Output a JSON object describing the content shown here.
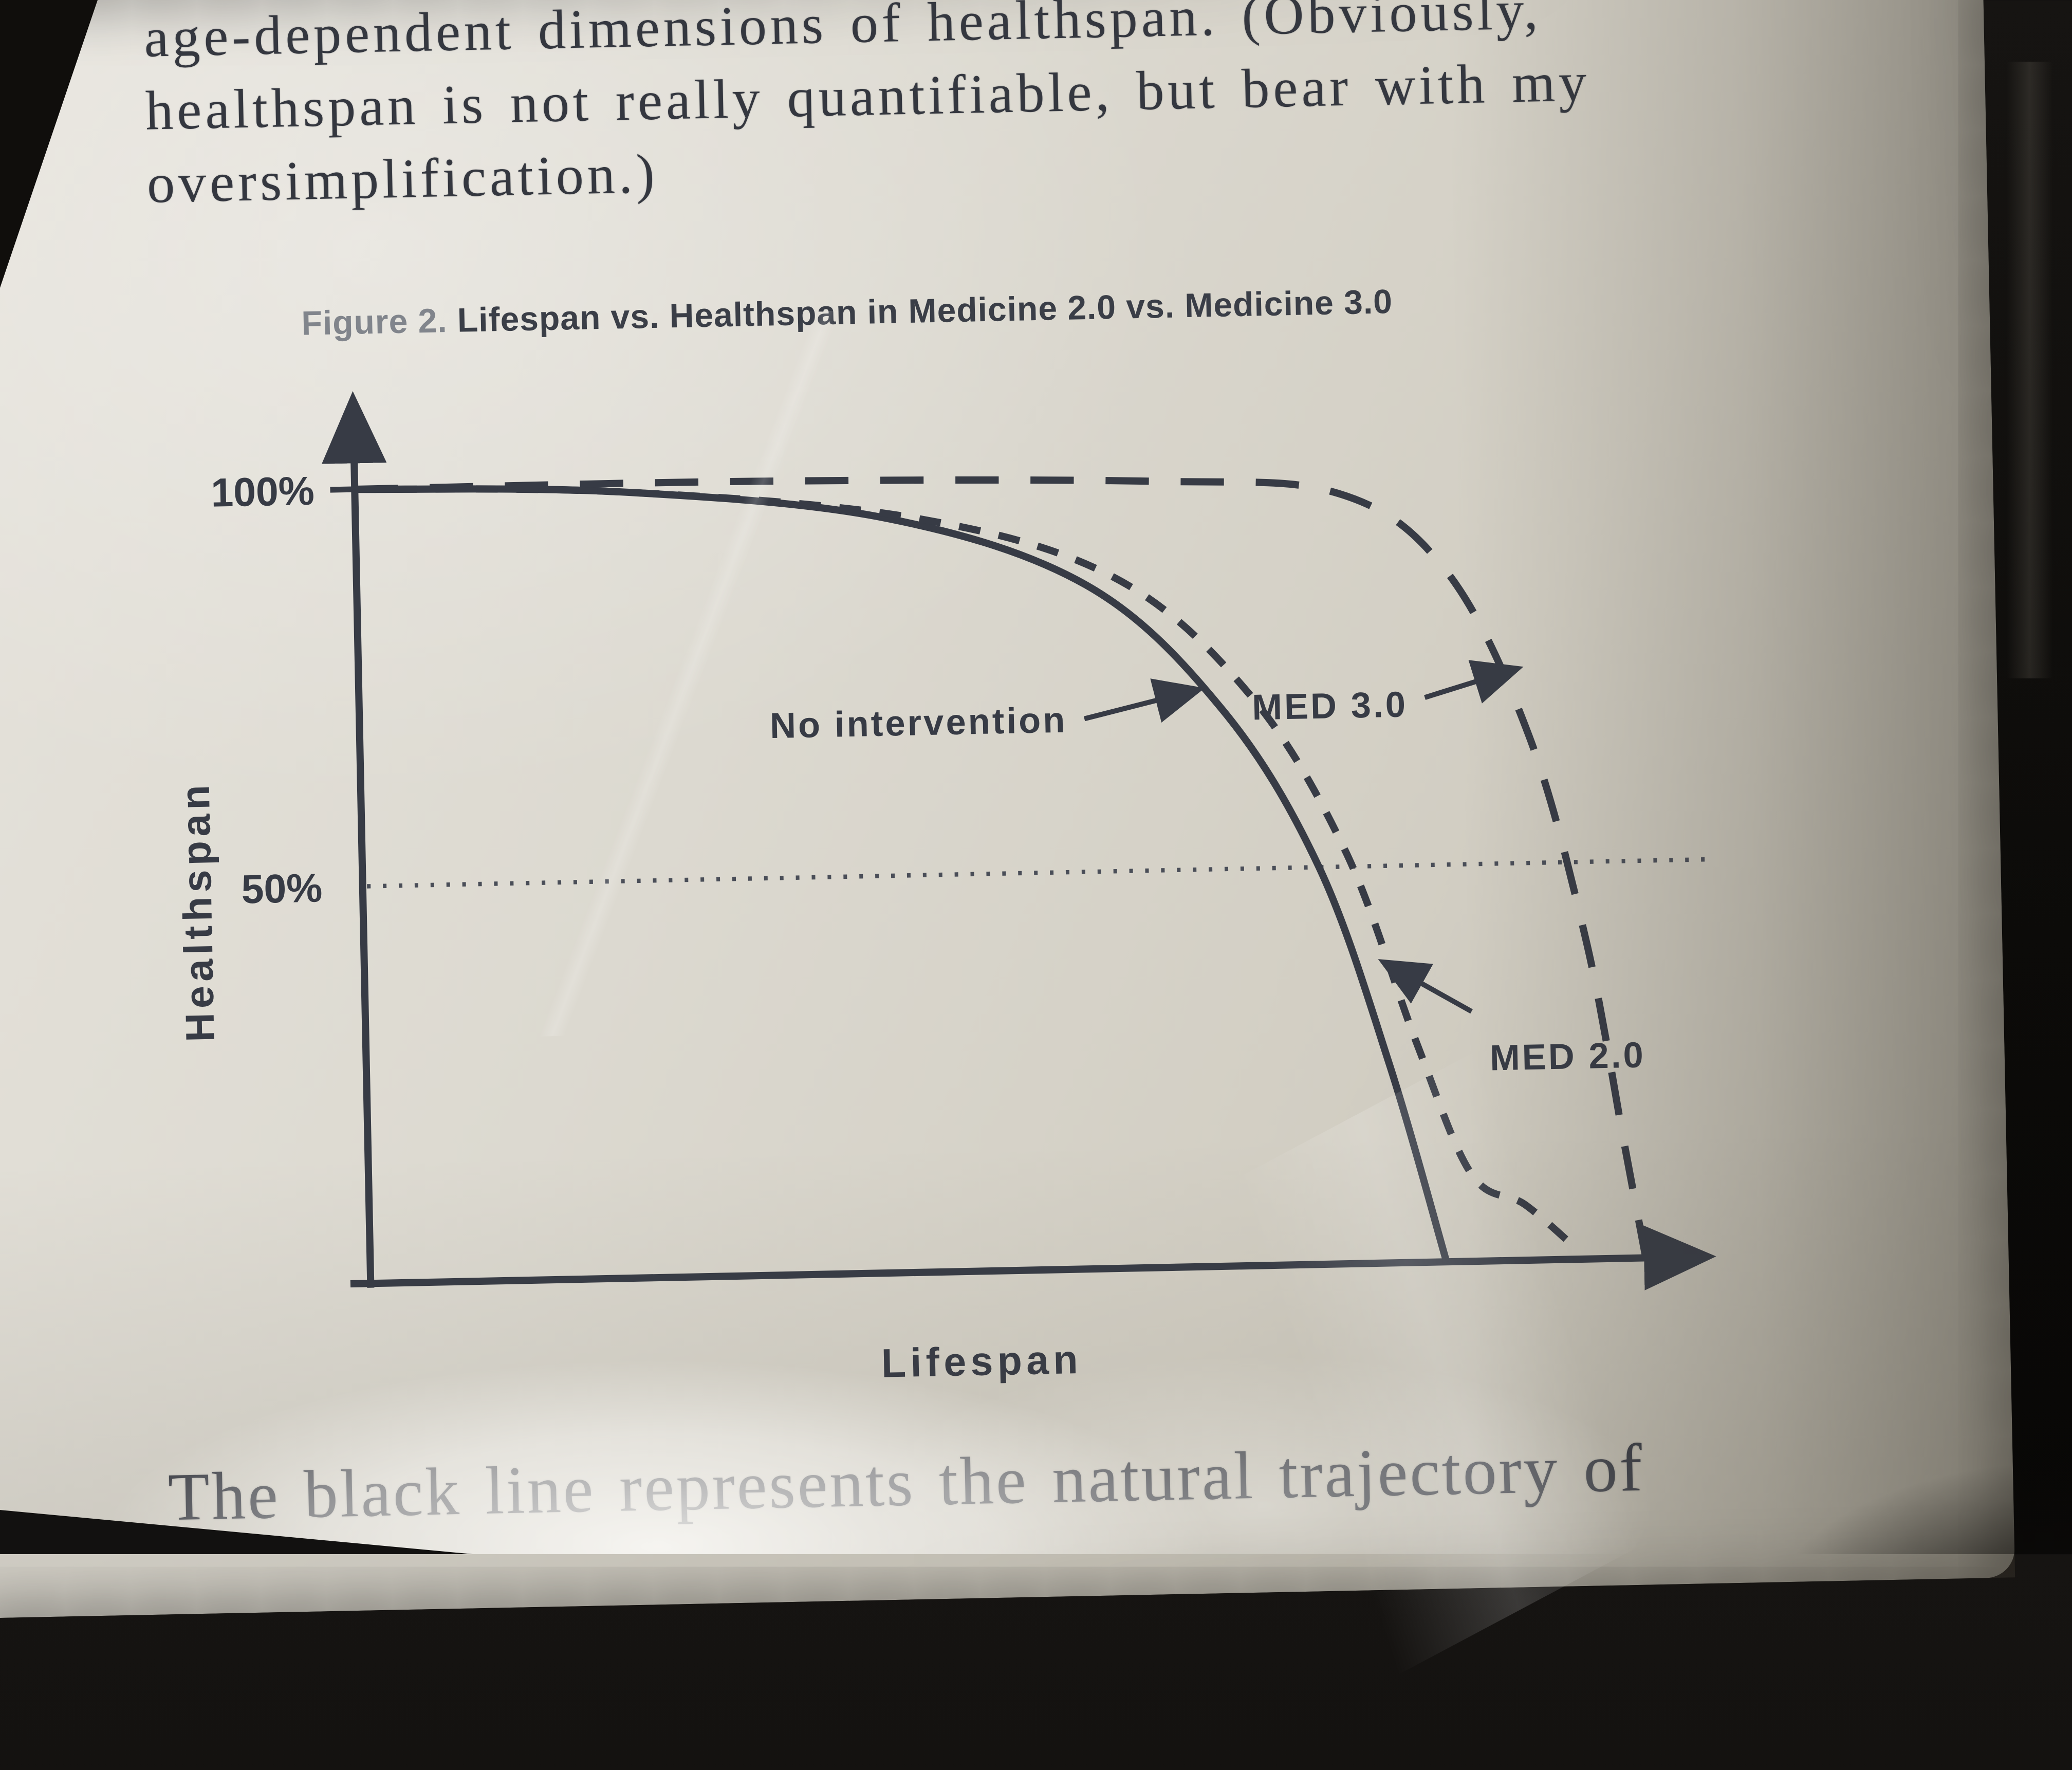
{
  "page": {
    "top_paragraph": {
      "line1": "age-dependent dimensions of healthspan. (Obviously,",
      "line2": "healthspan is not really quantifiable, but bear with my",
      "line3": "oversimplification.)"
    },
    "bottom_paragraph": "The black line represents the natural trajectory of"
  },
  "figure": {
    "label": "Figure 2.",
    "title": "Lifespan vs. Healthspan in Medicine 2.0 vs. Medicine 3.0"
  },
  "chart_data": {
    "type": "line",
    "title": "Figure 2. Lifespan vs. Healthspan in Medicine 2.0 vs. Medicine 3.0",
    "xlabel": "Lifespan",
    "ylabel": "Healthspan",
    "ytick_labels": [
      "100%",
      "50%"
    ],
    "ylim": [
      0,
      100
    ],
    "xlim": [
      0,
      100
    ],
    "grid": false,
    "reference_line": {
      "y": 50,
      "style": "dotted"
    },
    "series": [
      {
        "name": "No intervention",
        "style": "solid",
        "x": [
          0,
          20,
          40,
          55,
          65,
          72,
          77,
          81
        ],
        "y": [
          100,
          99,
          95,
          86,
          70,
          50,
          25,
          0
        ]
      },
      {
        "name": "MED 2.0",
        "style": "dashed-short",
        "x": [
          0,
          20,
          42,
          57,
          67,
          74,
          79,
          83,
          87,
          91
        ],
        "y": [
          100,
          99,
          95,
          87,
          72,
          52,
          28,
          11,
          7,
          1
        ]
      },
      {
        "name": "MED 3.0",
        "style": "dashed-long",
        "x": [
          0,
          30,
          60,
          74,
          82,
          88,
          92,
          94.5,
          96
        ],
        "y": [
          100,
          100,
          99,
          97,
          87,
          66,
          40,
          15,
          0
        ]
      }
    ],
    "legend_position": "annotated-arrows"
  },
  "colors": {
    "ink": "#373b45",
    "paper": "#d9d6cd",
    "caption_label_gray": "#81858c",
    "bezel_black": "#0e0d0b"
  }
}
